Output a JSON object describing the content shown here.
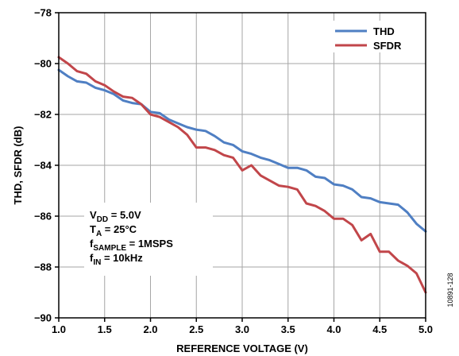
{
  "chart_data": {
    "type": "line",
    "xlabel": "REFERENCE VOLTAGE (V)",
    "ylabel": "THD, SFDR (dB)",
    "xlim": [
      1.0,
      5.0
    ],
    "ylim": [
      -90,
      -78
    ],
    "xticks": [
      "1.0",
      "1.5",
      "2.0",
      "2.5",
      "3.0",
      "3.5",
      "4.0",
      "4.5",
      "5.0"
    ],
    "yticks": [
      "−78",
      "−80",
      "−82",
      "−84",
      "−86",
      "−88",
      "−90"
    ],
    "xtick_values": [
      1.0,
      1.5,
      2.0,
      2.5,
      3.0,
      3.5,
      4.0,
      4.5,
      5.0
    ],
    "ytick_values": [
      -78,
      -80,
      -82,
      -84,
      -86,
      -88,
      -90
    ],
    "grid": true,
    "legend_position": "top-right",
    "series": [
      {
        "name": "THD",
        "color": "#4f7fc3",
        "x": [
          1.0,
          1.1,
          1.2,
          1.3,
          1.4,
          1.5,
          1.6,
          1.7,
          1.8,
          1.9,
          2.0,
          2.1,
          2.2,
          2.3,
          2.4,
          2.5,
          2.6,
          2.7,
          2.8,
          2.9,
          3.0,
          3.1,
          3.2,
          3.3,
          3.4,
          3.5,
          3.6,
          3.7,
          3.8,
          3.9,
          4.0,
          4.1,
          4.2,
          4.3,
          4.4,
          4.5,
          4.6,
          4.7,
          4.8,
          4.9,
          5.0
        ],
        "values": [
          -80.25,
          -80.5,
          -80.7,
          -80.75,
          -80.95,
          -81.05,
          -81.2,
          -81.45,
          -81.55,
          -81.6,
          -81.9,
          -81.95,
          -82.2,
          -82.35,
          -82.5,
          -82.6,
          -82.65,
          -82.85,
          -83.1,
          -83.2,
          -83.45,
          -83.55,
          -83.7,
          -83.8,
          -83.95,
          -84.1,
          -84.1,
          -84.2,
          -84.45,
          -84.5,
          -84.75,
          -84.8,
          -84.95,
          -85.25,
          -85.3,
          -85.45,
          -85.5,
          -85.55,
          -85.85,
          -86.3,
          -86.6
        ]
      },
      {
        "name": "SFDR",
        "color": "#c1464a",
        "x": [
          1.0,
          1.1,
          1.2,
          1.3,
          1.4,
          1.5,
          1.6,
          1.7,
          1.8,
          1.9,
          2.0,
          2.1,
          2.2,
          2.3,
          2.4,
          2.5,
          2.6,
          2.7,
          2.8,
          2.9,
          3.0,
          3.1,
          3.2,
          3.3,
          3.4,
          3.5,
          3.6,
          3.7,
          3.8,
          3.9,
          4.0,
          4.1,
          4.2,
          4.3,
          4.4,
          4.5,
          4.6,
          4.7,
          4.8,
          4.9,
          5.0
        ],
        "values": [
          -79.75,
          -80.0,
          -80.3,
          -80.4,
          -80.7,
          -80.85,
          -81.1,
          -81.3,
          -81.35,
          -81.6,
          -82.0,
          -82.1,
          -82.3,
          -82.5,
          -82.8,
          -83.3,
          -83.3,
          -83.4,
          -83.6,
          -83.7,
          -84.2,
          -84.0,
          -84.4,
          -84.6,
          -84.8,
          -84.85,
          -84.95,
          -85.5,
          -85.6,
          -85.8,
          -86.1,
          -86.1,
          -86.35,
          -86.95,
          -86.7,
          -87.4,
          -87.4,
          -87.75,
          -87.95,
          -88.25,
          -89.0
        ]
      }
    ],
    "annotations": {
      "vdd": {
        "main": "V",
        "sub": "DD",
        "rest": " = 5.0V"
      },
      "ta": {
        "main": "T",
        "sub": "A",
        "rest": " = 25°C"
      },
      "fsample": {
        "main": "f",
        "sub": "SAMPLE",
        "rest": " = 1MSPS"
      },
      "fin": {
        "main": "f",
        "sub": "IN",
        "rest": " = 10kHz"
      }
    },
    "figure_number": "10891-128"
  }
}
